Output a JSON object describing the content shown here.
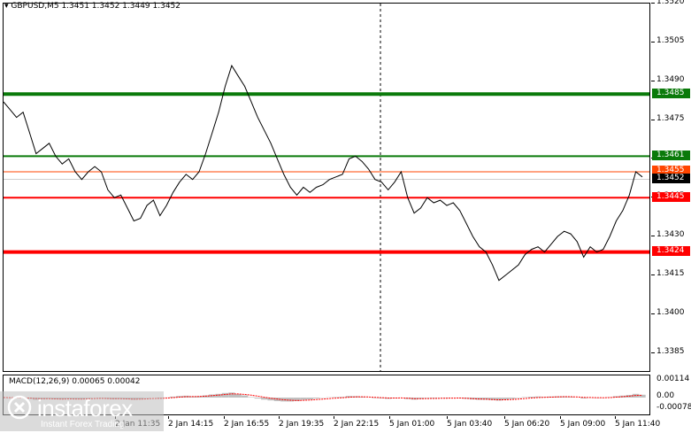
{
  "header": {
    "symbol_timeframe": "GBPUSD,M5",
    "ohlc": "1.3451 1.3452 1.3449 1.3452"
  },
  "macd": {
    "label": "MACD(12,26,9) 0.00065 0.00042",
    "axis_labels": [
      "0.00114",
      "0.00",
      "-0.00078"
    ],
    "values_max": 0.00114,
    "values_min": -0.00078,
    "histogram_color": "#c0c0c0",
    "signal_color": "#ff0000"
  },
  "watermark": {
    "icon": "instaforex-logo-icon",
    "name": "instaforex",
    "tagline": "Instant Forex Trading"
  },
  "chart_data": {
    "type": "line",
    "y_range": [
      1.3378,
      1.352
    ],
    "y_ticks": [
      "1.3520",
      "1.3505",
      "1.3490",
      "1.3475",
      "1.3460",
      "1.3445",
      "1.3430",
      "1.3415",
      "1.3400",
      "1.3385"
    ],
    "x_labels": [
      "2 Jan 11:35",
      "2 Jan 14:15",
      "2 Jan 16:55",
      "2 Jan 19:35",
      "2 Jan 22:15",
      "5 Jan 01:00",
      "5 Jan 03:40",
      "5 Jan 06:20",
      "5 Jan 09:00",
      "5 Jan 11:40"
    ],
    "price_series": [
      1.3482,
      1.3479,
      1.3476,
      1.3478,
      1.347,
      1.3462,
      1.3464,
      1.3466,
      1.3461,
      1.3458,
      1.346,
      1.3455,
      1.3452,
      1.3455,
      1.3457,
      1.3455,
      1.3448,
      1.3445,
      1.3446,
      1.3441,
      1.3436,
      1.3437,
      1.3442,
      1.3444,
      1.3438,
      1.3442,
      1.3447,
      1.3451,
      1.3454,
      1.3452,
      1.3455,
      1.3462,
      1.347,
      1.3478,
      1.3488,
      1.3496,
      1.3492,
      1.3488,
      1.3482,
      1.3476,
      1.3471,
      1.3466,
      1.346,
      1.3454,
      1.3449,
      1.3446,
      1.3449,
      1.3447,
      1.3449,
      1.345,
      1.3452,
      1.3453,
      1.3454,
      1.346,
      1.3461,
      1.3459,
      1.3456,
      1.3452,
      1.3451,
      1.3448,
      1.3451,
      1.3455,
      1.3445,
      1.3439,
      1.3441,
      1.3445,
      1.3443,
      1.3444,
      1.3442,
      1.3443,
      1.344,
      1.3435,
      1.343,
      1.3426,
      1.3424,
      1.3419,
      1.3413,
      1.3415,
      1.3417,
      1.3419,
      1.3423,
      1.3425,
      1.3426,
      1.3424,
      1.3427,
      1.343,
      1.3432,
      1.3431,
      1.3428,
      1.3422,
      1.3426,
      1.3424,
      1.3425,
      1.343,
      1.3436,
      1.344,
      1.3446,
      1.3455,
      1.3453
    ],
    "levels": [
      {
        "price": 1.3485,
        "label": "1.3485",
        "color": "#0a7a0a",
        "thickness": "thick"
      },
      {
        "price": 1.3461,
        "label": "1.3461",
        "color": "#0a7a0a",
        "thickness": "thin"
      },
      {
        "price": 1.3455,
        "label": "1.3455",
        "color": "#ff4500",
        "thickness": "hairline"
      },
      {
        "price": 1.3445,
        "label": "1.3445",
        "color": "#ff0000",
        "thickness": "thin"
      },
      {
        "price": 1.3424,
        "label": "1.3424",
        "color": "#ff0000",
        "thickness": "thick"
      }
    ],
    "current_price": {
      "price": 1.3452,
      "label": "1.3452",
      "color": "#000000"
    },
    "grid": true
  }
}
